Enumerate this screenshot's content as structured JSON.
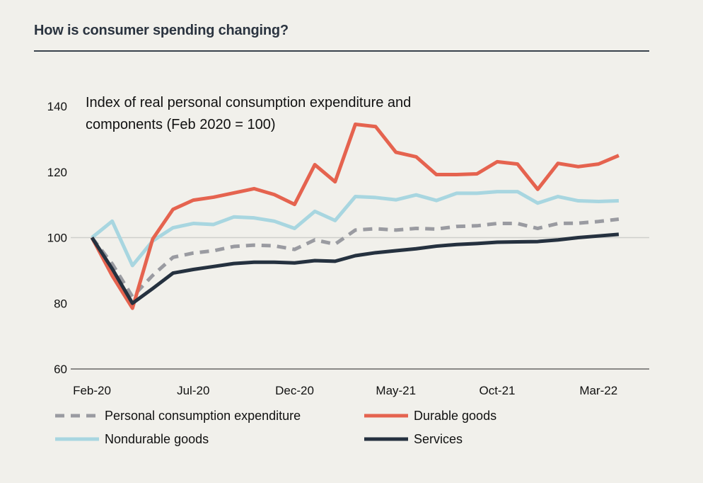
{
  "header": {
    "title": "How is consumer spending changing?"
  },
  "chart_data": {
    "type": "line",
    "title": "Index of real personal consumption expenditure and components (Feb 2020 = 100)",
    "subtitle_lines": [
      "Index of real personal consumption expenditure and",
      "components (Feb 2020 = 100)"
    ],
    "x": [
      "Feb-20",
      "Mar-20",
      "Apr-20",
      "May-20",
      "Jun-20",
      "Jul-20",
      "Aug-20",
      "Sep-20",
      "Oct-20",
      "Nov-20",
      "Dec-20",
      "Jan-21",
      "Feb-21",
      "Mar-21",
      "Apr-21",
      "May-21",
      "Jun-21",
      "Jul-21",
      "Aug-21",
      "Sep-21",
      "Oct-21",
      "Nov-21",
      "Dec-21",
      "Jan-22",
      "Feb-22",
      "Mar-22",
      "Apr-22"
    ],
    "x_tick_labels": [
      "Feb-20",
      "Jul-20",
      "Dec-20",
      "May-21",
      "Oct-21",
      "Mar-22"
    ],
    "y_tick_labels": [
      "60",
      "80",
      "100",
      "120",
      "140"
    ],
    "ylim": [
      60,
      140
    ],
    "grid": "horizontal line at 100 only",
    "legend_placement": "bottom",
    "series": [
      {
        "name": "Personal consumption expenditure",
        "color": "#9a9ba1",
        "style": "dashed",
        "values": [
          100,
          92,
          82,
          88.5,
          94,
          95.3,
          96,
          97.3,
          97.7,
          97.5,
          96.4,
          99.3,
          98,
          102.3,
          102.7,
          102.3,
          102.8,
          102.6,
          103.4,
          103.6,
          104.3,
          104.3,
          102.8,
          104.3,
          104.4,
          104.9,
          105.6
        ]
      },
      {
        "name": "Durable goods",
        "color": "#e5634f",
        "style": "solid",
        "values": [
          100,
          88.4,
          78.5,
          99.6,
          108.6,
          111.4,
          112.3,
          113.6,
          114.9,
          113.1,
          110.1,
          122.2,
          117,
          134.5,
          133.8,
          126,
          124.6,
          119.2,
          119.2,
          119.4,
          123.1,
          122.4,
          114.7,
          122.6,
          121.6,
          122.4,
          125
        ]
      },
      {
        "name": "Nondurable goods",
        "color": "#a8d6e0",
        "style": "solid",
        "values": [
          100,
          105,
          91.5,
          99,
          103,
          104.3,
          104,
          106.3,
          106,
          105,
          102.8,
          108,
          105.2,
          112.5,
          112.2,
          111.5,
          113,
          111.3,
          113.5,
          113.5,
          114,
          114,
          110.5,
          112.5,
          111.2,
          111,
          111.2
        ]
      },
      {
        "name": "Services",
        "color": "#25313f",
        "style": "solid",
        "values": [
          100,
          90.5,
          80,
          84.5,
          89.2,
          90.3,
          91.2,
          92.1,
          92.5,
          92.5,
          92.3,
          93,
          92.8,
          94.5,
          95.4,
          96,
          96.6,
          97.4,
          97.9,
          98.2,
          98.6,
          98.7,
          98.8,
          99.3,
          100,
          100.5,
          101
        ]
      }
    ]
  }
}
